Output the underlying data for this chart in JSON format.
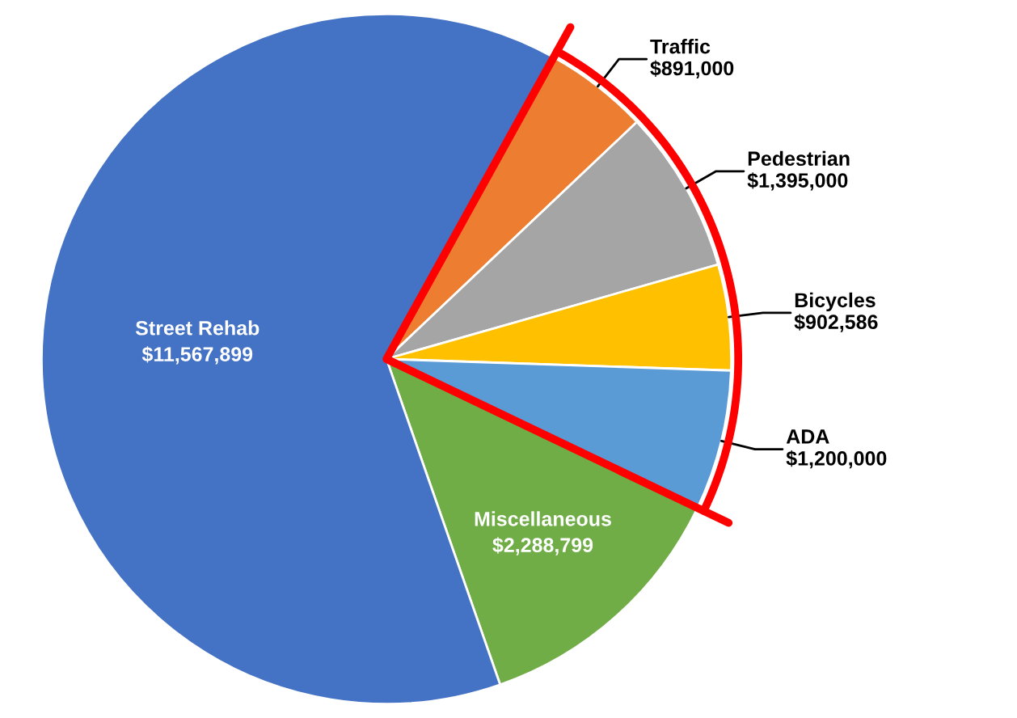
{
  "chart_data": {
    "type": "pie",
    "categories": [
      "Traffic",
      "Pedestrian",
      "Bicycles",
      "ADA",
      "Miscellaneous",
      "Street Rehab"
    ],
    "values": [
      891000,
      1395000,
      902586,
      1200000,
      2288799,
      11567899
    ],
    "value_labels": [
      "$891,000",
      "$1,395,000",
      "$902,586",
      "$1,200,000",
      "$2,288,799",
      "$11,567,899"
    ],
    "colors": [
      "#ed7d31",
      "#a5a5a5",
      "#ffc000",
      "#5b9bd5",
      "#70ad47",
      "#4472c4"
    ]
  }
}
